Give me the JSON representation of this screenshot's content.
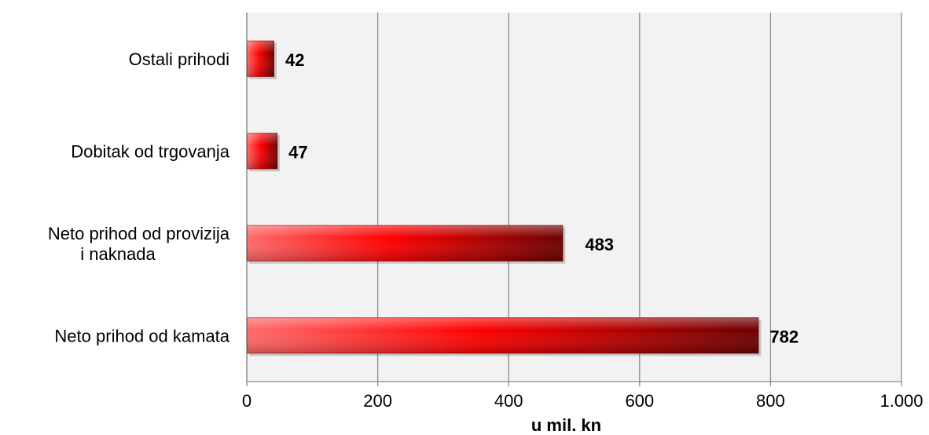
{
  "chart_data": {
    "type": "bar",
    "orientation": "horizontal",
    "categories": [
      [
        "Ostali prihodi"
      ],
      [
        "Dobitak od trgovanja"
      ],
      [
        "Neto prihod od provizija",
        "i naknada"
      ],
      [
        "Neto prihod od kamata"
      ]
    ],
    "values": [
      42,
      47,
      483,
      782
    ],
    "data_labels": [
      "42",
      "47",
      "483",
      "782"
    ],
    "xlabel": "u mil. kn",
    "xlim": [
      0,
      1000
    ],
    "x_ticks": [
      0,
      200,
      400,
      600,
      800,
      1000
    ],
    "x_tick_labels": [
      "0",
      "200",
      "400",
      "600",
      "800",
      "1.000"
    ],
    "grid": "vertical",
    "legend": "none",
    "colors": {
      "plot_background": "#f2f2f2",
      "grid": "#8c8c8c",
      "bar_light": "#ff6a6a",
      "bar_mid": "#ff0000",
      "bar_dark": "#6b0000"
    }
  }
}
